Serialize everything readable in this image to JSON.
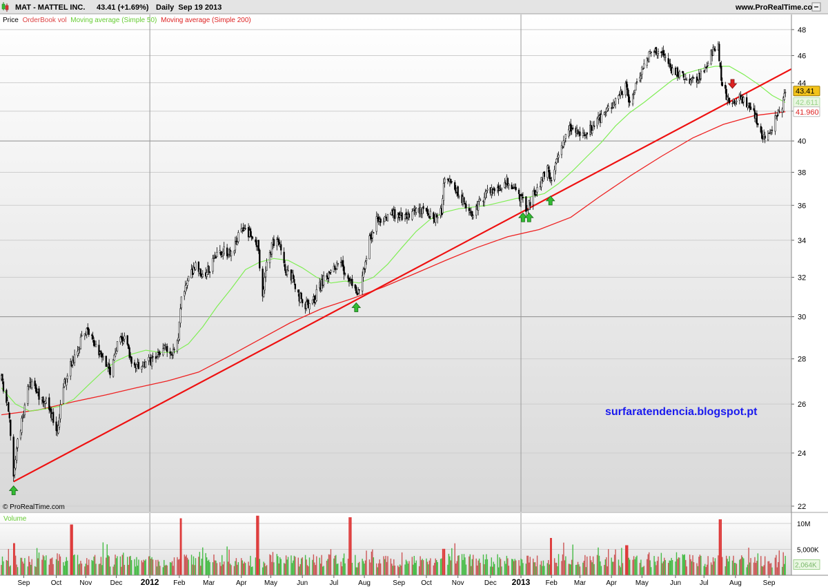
{
  "header": {
    "symbol": "MAT - MATTEL INC.",
    "quote": "43.41 (+1.69%)",
    "period": "Daily  Sep 19 2013",
    "website": "www.ProRealTime.com"
  },
  "legend": {
    "price": "Price",
    "orderbook": "OrderBook vol",
    "ma50": "Moving average (Simple 50)",
    "ma200": "Moving average (Simple 200)"
  },
  "copyright": "© ProRealTime.com",
  "watermark": "surfaratendencia.blogspot.pt",
  "volume_label": "Volume",
  "colors": {
    "ma50": "#80ee55",
    "ma200": "#ee2222",
    "trend": "#ee1111",
    "arrow_up": "#33bb33",
    "arrow_down": "#dd2222",
    "volume": "#44bb44",
    "volume_spike": "#dd3333",
    "watermark": "#1a1aee",
    "price_tag": "#f2c21a"
  },
  "chart_data": {
    "type": "candlestick",
    "title": "MAT - MATTEL INC.",
    "x_axis": {
      "range": [
        "2011-08-10",
        "2013-09-25"
      ],
      "tick_labels": [
        {
          "date": "2011-09-01",
          "label": "Sep"
        },
        {
          "date": "2011-10-03",
          "label": "Oct"
        },
        {
          "date": "2011-11-01",
          "label": "Nov"
        },
        {
          "date": "2011-12-01",
          "label": "Dec"
        },
        {
          "date": "2012-01-03",
          "label": "2012"
        },
        {
          "date": "2012-02-01",
          "label": "Feb"
        },
        {
          "date": "2012-03-01",
          "label": "Mar"
        },
        {
          "date": "2012-04-02",
          "label": "Apr"
        },
        {
          "date": "2012-05-01",
          "label": "May"
        },
        {
          "date": "2012-06-01",
          "label": "Jun"
        },
        {
          "date": "2012-07-02",
          "label": "Jul"
        },
        {
          "date": "2012-08-01",
          "label": "Aug"
        },
        {
          "date": "2012-09-04",
          "label": "Sep"
        },
        {
          "date": "2012-10-01",
          "label": "Oct"
        },
        {
          "date": "2012-11-01",
          "label": "Nov"
        },
        {
          "date": "2012-12-03",
          "label": "Dec"
        },
        {
          "date": "2013-01-02",
          "label": "2013"
        },
        {
          "date": "2013-02-01",
          "label": "Feb"
        },
        {
          "date": "2013-03-01",
          "label": "Mar"
        },
        {
          "date": "2013-04-01",
          "label": "Apr"
        },
        {
          "date": "2013-05-01",
          "label": "May"
        },
        {
          "date": "2013-06-03",
          "label": "Jun"
        },
        {
          "date": "2013-07-01",
          "label": "Jul"
        },
        {
          "date": "2013-08-01",
          "label": "Aug"
        },
        {
          "date": "2013-09-03",
          "label": "Sep"
        }
      ],
      "year_separators": [
        "2012-01-03",
        "2013-01-02"
      ]
    },
    "y_axis": {
      "range": [
        21.8,
        49.2
      ],
      "scale": "log",
      "ticks": [
        22,
        24,
        26,
        28,
        30,
        32,
        34,
        36,
        38,
        40,
        42,
        44,
        46,
        48
      ],
      "bold_ticks": [
        30,
        40
      ]
    },
    "price_key_points": [
      [
        "2011-08-10",
        27.1
      ],
      [
        "2011-08-17",
        25.8
      ],
      [
        "2011-08-22",
        23.0
      ],
      [
        "2011-08-25",
        24.2
      ],
      [
        "2011-08-30",
        25.3
      ],
      [
        "2011-09-07",
        27.0
      ],
      [
        "2011-09-13",
        26.5
      ],
      [
        "2011-09-22",
        26.2
      ],
      [
        "2011-09-30",
        25.4
      ],
      [
        "2011-10-04",
        24.8
      ],
      [
        "2011-10-10",
        26.8
      ],
      [
        "2011-10-18",
        27.8
      ],
      [
        "2011-10-28",
        28.9
      ],
      [
        "2011-11-03",
        29.3
      ],
      [
        "2011-11-10",
        28.6
      ],
      [
        "2011-11-18",
        28.2
      ],
      [
        "2011-11-25",
        27.4
      ],
      [
        "2011-12-02",
        28.6
      ],
      [
        "2011-12-09",
        29.1
      ],
      [
        "2011-12-16",
        27.9
      ],
      [
        "2011-12-23",
        27.6
      ],
      [
        "2011-12-30",
        27.8
      ],
      [
        "2012-01-09",
        28.0
      ],
      [
        "2012-01-18",
        28.5
      ],
      [
        "2012-01-25",
        28.3
      ],
      [
        "2012-01-31",
        29.0
      ],
      [
        "2012-02-03",
        31.0
      ],
      [
        "2012-02-10",
        32.0
      ],
      [
        "2012-02-17",
        32.6
      ],
      [
        "2012-02-24",
        32.0
      ],
      [
        "2012-03-02",
        32.5
      ],
      [
        "2012-03-09",
        33.1
      ],
      [
        "2012-03-16",
        33.5
      ],
      [
        "2012-03-23",
        33.2
      ],
      [
        "2012-03-30",
        34.2
      ],
      [
        "2012-04-05",
        34.6
      ],
      [
        "2012-04-11",
        34.3
      ],
      [
        "2012-04-18",
        33.7
      ],
      [
        "2012-04-23",
        31.2
      ],
      [
        "2012-04-27",
        32.6
      ],
      [
        "2012-05-03",
        33.9
      ],
      [
        "2012-05-08",
        34.0
      ],
      [
        "2012-05-15",
        32.4
      ],
      [
        "2012-05-22",
        32.0
      ],
      [
        "2012-05-29",
        31.0
      ],
      [
        "2012-06-05",
        30.5
      ],
      [
        "2012-06-12",
        30.8
      ],
      [
        "2012-06-19",
        31.6
      ],
      [
        "2012-06-26",
        32.1
      ],
      [
        "2012-07-03",
        32.5
      ],
      [
        "2012-07-10",
        32.6
      ],
      [
        "2012-07-17",
        31.9
      ],
      [
        "2012-07-24",
        31.2
      ],
      [
        "2012-07-30",
        31.9
      ],
      [
        "2012-08-06",
        34.0
      ],
      [
        "2012-08-13",
        35.1
      ],
      [
        "2012-08-20",
        35.3
      ],
      [
        "2012-08-27",
        35.5
      ],
      [
        "2012-09-04",
        35.4
      ],
      [
        "2012-09-11",
        35.2
      ],
      [
        "2012-09-18",
        35.6
      ],
      [
        "2012-09-25",
        35.8
      ],
      [
        "2012-10-02",
        35.5
      ],
      [
        "2012-10-09",
        35.2
      ],
      [
        "2012-10-16",
        35.7
      ],
      [
        "2012-10-18",
        37.3
      ],
      [
        "2012-10-24",
        37.4
      ],
      [
        "2012-10-31",
        36.9
      ],
      [
        "2012-11-07",
        36.2
      ],
      [
        "2012-11-14",
        35.4
      ],
      [
        "2012-11-20",
        36.0
      ],
      [
        "2012-11-27",
        36.5
      ],
      [
        "2012-12-04",
        36.9
      ],
      [
        "2012-12-11",
        37.0
      ],
      [
        "2012-12-18",
        37.5
      ],
      [
        "2012-12-24",
        37.1
      ],
      [
        "2013-01-02",
        36.4
      ],
      [
        "2013-01-07",
        35.8
      ],
      [
        "2013-01-14",
        36.6
      ],
      [
        "2013-01-21",
        37.3
      ],
      [
        "2013-01-28",
        38.2
      ],
      [
        "2013-02-01",
        37.2
      ],
      [
        "2013-02-06",
        38.8
      ],
      [
        "2013-02-12",
        39.9
      ],
      [
        "2013-02-19",
        40.8
      ],
      [
        "2013-02-26",
        40.6
      ],
      [
        "2013-03-05",
        40.3
      ],
      [
        "2013-03-12",
        40.8
      ],
      [
        "2013-03-19",
        41.3
      ],
      [
        "2013-03-26",
        42.0
      ],
      [
        "2013-04-02",
        42.5
      ],
      [
        "2013-04-09",
        43.3
      ],
      [
        "2013-04-16",
        43.7
      ],
      [
        "2013-04-19",
        42.3
      ],
      [
        "2013-04-25",
        43.9
      ],
      [
        "2013-05-02",
        45.2
      ],
      [
        "2013-05-09",
        46.2
      ],
      [
        "2013-05-16",
        46.4
      ],
      [
        "2013-05-23",
        46.0
      ],
      [
        "2013-05-30",
        45.0
      ],
      [
        "2013-06-06",
        44.6
      ],
      [
        "2013-06-13",
        44.3
      ],
      [
        "2013-06-20",
        44.1
      ],
      [
        "2013-06-27",
        44.4
      ],
      [
        "2013-07-03",
        45.0
      ],
      [
        "2013-07-09",
        46.3
      ],
      [
        "2013-07-15",
        46.8
      ],
      [
        "2013-07-18",
        44.2
      ],
      [
        "2013-07-24",
        42.9
      ],
      [
        "2013-07-31",
        42.8
      ],
      [
        "2013-08-07",
        42.9
      ],
      [
        "2013-08-14",
        42.4
      ],
      [
        "2013-08-21",
        41.5
      ],
      [
        "2013-08-28",
        40.3
      ],
      [
        "2013-09-03",
        40.6
      ],
      [
        "2013-09-10",
        41.5
      ],
      [
        "2013-09-16",
        42.2
      ],
      [
        "2013-09-19",
        43.41
      ]
    ],
    "series": [
      {
        "name": "Moving average (Simple 50)",
        "points": [
          [
            "2011-08-10",
            26.7
          ],
          [
            "2011-08-24",
            26.0
          ],
          [
            "2011-09-07",
            25.7
          ],
          [
            "2011-09-22",
            25.8
          ],
          [
            "2011-10-06",
            25.9
          ],
          [
            "2011-10-20",
            26.2
          ],
          [
            "2011-11-03",
            26.8
          ],
          [
            "2011-11-17",
            27.4
          ],
          [
            "2011-12-01",
            27.9
          ],
          [
            "2011-12-15",
            28.2
          ],
          [
            "2011-12-30",
            28.4
          ],
          [
            "2012-01-13",
            28.3
          ],
          [
            "2012-01-27",
            28.3
          ],
          [
            "2012-02-10",
            28.7
          ],
          [
            "2012-02-24",
            29.5
          ],
          [
            "2012-03-09",
            30.5
          ],
          [
            "2012-03-23",
            31.4
          ],
          [
            "2012-04-06",
            32.4
          ],
          [
            "2012-04-20",
            32.8
          ],
          [
            "2012-05-04",
            33.0
          ],
          [
            "2012-05-18",
            32.9
          ],
          [
            "2012-06-01",
            32.5
          ],
          [
            "2012-06-15",
            32.0
          ],
          [
            "2012-06-29",
            31.7
          ],
          [
            "2012-07-13",
            31.8
          ],
          [
            "2012-07-27",
            31.7
          ],
          [
            "2012-08-10",
            32.0
          ],
          [
            "2012-08-24",
            32.7
          ],
          [
            "2012-09-07",
            33.6
          ],
          [
            "2012-09-21",
            34.5
          ],
          [
            "2012-10-05",
            35.2
          ],
          [
            "2012-10-19",
            35.6
          ],
          [
            "2012-11-02",
            35.8
          ],
          [
            "2012-11-16",
            35.9
          ],
          [
            "2012-11-30",
            36.0
          ],
          [
            "2012-12-14",
            36.2
          ],
          [
            "2012-12-28",
            36.4
          ],
          [
            "2013-01-11",
            36.5
          ],
          [
            "2013-01-25",
            36.7
          ],
          [
            "2013-02-08",
            37.3
          ],
          [
            "2013-02-22",
            38.1
          ],
          [
            "2013-03-08",
            39.0
          ],
          [
            "2013-03-22",
            39.9
          ],
          [
            "2013-04-05",
            41.0
          ],
          [
            "2013-04-19",
            41.9
          ],
          [
            "2013-05-03",
            42.6
          ],
          [
            "2013-05-17",
            43.4
          ],
          [
            "2013-05-31",
            44.2
          ],
          [
            "2013-06-14",
            44.7
          ],
          [
            "2013-06-28",
            45.0
          ],
          [
            "2013-07-12",
            45.2
          ],
          [
            "2013-07-26",
            45.2
          ],
          [
            "2013-08-09",
            44.6
          ],
          [
            "2013-08-23",
            43.9
          ],
          [
            "2013-09-06",
            43.1
          ],
          [
            "2013-09-19",
            42.6
          ]
        ]
      },
      {
        "name": "Moving average (Simple 200)",
        "points": [
          [
            "2011-08-10",
            25.55
          ],
          [
            "2011-09-15",
            25.75
          ],
          [
            "2011-10-20",
            26.1
          ],
          [
            "2011-11-21",
            26.4
          ],
          [
            "2011-12-20",
            26.7
          ],
          [
            "2012-01-20",
            27.0
          ],
          [
            "2012-02-20",
            27.4
          ],
          [
            "2012-03-20",
            28.1
          ],
          [
            "2012-04-20",
            28.9
          ],
          [
            "2012-05-20",
            29.7
          ],
          [
            "2012-06-20",
            30.4
          ],
          [
            "2012-07-20",
            30.9
          ],
          [
            "2012-08-20",
            31.5
          ],
          [
            "2012-09-20",
            32.2
          ],
          [
            "2012-10-20",
            32.9
          ],
          [
            "2012-11-20",
            33.6
          ],
          [
            "2012-12-20",
            34.2
          ],
          [
            "2013-01-20",
            34.6
          ],
          [
            "2013-02-20",
            35.3
          ],
          [
            "2013-03-20",
            36.5
          ],
          [
            "2013-04-20",
            37.8
          ],
          [
            "2013-05-20",
            39.0
          ],
          [
            "2013-06-20",
            40.2
          ],
          [
            "2013-07-20",
            41.1
          ],
          [
            "2013-08-20",
            41.7
          ],
          [
            "2013-09-19",
            41.96
          ]
        ]
      }
    ],
    "trendline": {
      "from": [
        "2011-08-22",
        22.9
      ],
      "to": [
        "2013-09-25",
        45.0
      ]
    },
    "support_arrows": [
      {
        "date": "2011-08-22",
        "price": 22.9,
        "direction": "up"
      },
      {
        "date": "2012-07-24",
        "price": 30.9,
        "direction": "up"
      },
      {
        "date": "2013-01-04",
        "price": 35.8,
        "direction": "up"
      },
      {
        "date": "2013-01-10",
        "price": 35.8,
        "direction": "up"
      },
      {
        "date": "2013-01-31",
        "price": 36.8,
        "direction": "up"
      },
      {
        "date": "2013-07-29",
        "price": 43.3,
        "direction": "down"
      }
    ],
    "price_tags": [
      {
        "label": "43.41",
        "value": 43.41
      },
      {
        "label": "42.611",
        "value": 42.61
      },
      {
        "label": "41.960",
        "value": 41.96
      }
    ],
    "volume": {
      "y_ticks": [
        {
          "value": 10000,
          "label": "10M"
        },
        {
          "value": 5000,
          "label": "5,000K"
        }
      ],
      "current_label": "2,064K",
      "current_value": 2064,
      "range": [
        0,
        12000
      ],
      "spikes": [
        {
          "date": "2011-08-22",
          "value": 6200
        },
        {
          "date": "2011-10-18",
          "value": 9800
        },
        {
          "date": "2012-02-03",
          "value": 11000
        },
        {
          "date": "2012-04-18",
          "value": 11500
        },
        {
          "date": "2012-07-18",
          "value": 11200
        },
        {
          "date": "2012-10-18",
          "value": 5100
        },
        {
          "date": "2013-02-01",
          "value": 7200
        },
        {
          "date": "2013-04-16",
          "value": 5800
        },
        {
          "date": "2013-07-17",
          "value": 10800
        }
      ]
    }
  }
}
